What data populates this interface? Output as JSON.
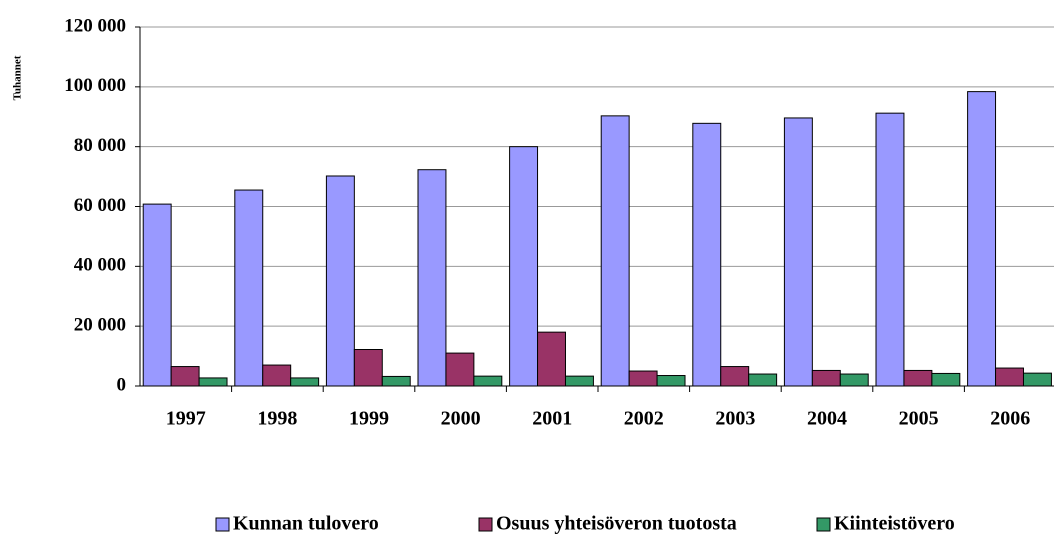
{
  "chart_data": {
    "type": "bar",
    "y_label": "Tuhannet",
    "categories": [
      "1997",
      "1998",
      "1999",
      "2000",
      "2001",
      "2002",
      "2003",
      "2004",
      "2005",
      "2006"
    ],
    "series": [
      {
        "name": "Kunnan tulovero",
        "color": "#9999ff",
        "values": [
          60800,
          65500,
          70200,
          72300,
          80000,
          90300,
          87800,
          89600,
          91200,
          98400
        ]
      },
      {
        "name": "Osuus yhteisöveron tuotosta",
        "color": "#993366",
        "values": [
          6500,
          7000,
          12200,
          11000,
          18000,
          5000,
          6500,
          5200,
          5200,
          6000
        ]
      },
      {
        "name": "Kiinteistövero",
        "color": "#339966",
        "values": [
          2700,
          2700,
          3200,
          3300,
          3300,
          3500,
          4000,
          4000,
          4200,
          4300
        ]
      }
    ],
    "ylim": [
      0,
      120000
    ],
    "yticks": [
      {
        "value": 0,
        "label": "0"
      },
      {
        "value": 20000,
        "label": "20 000"
      },
      {
        "value": 40000,
        "label": "40 000"
      },
      {
        "value": 60000,
        "label": "60 000"
      },
      {
        "value": 80000,
        "label": "80 000"
      },
      {
        "value": 100000,
        "label": "100 000"
      },
      {
        "value": 120000,
        "label": "120 000"
      }
    ],
    "grid": true,
    "legend": "bottom"
  }
}
